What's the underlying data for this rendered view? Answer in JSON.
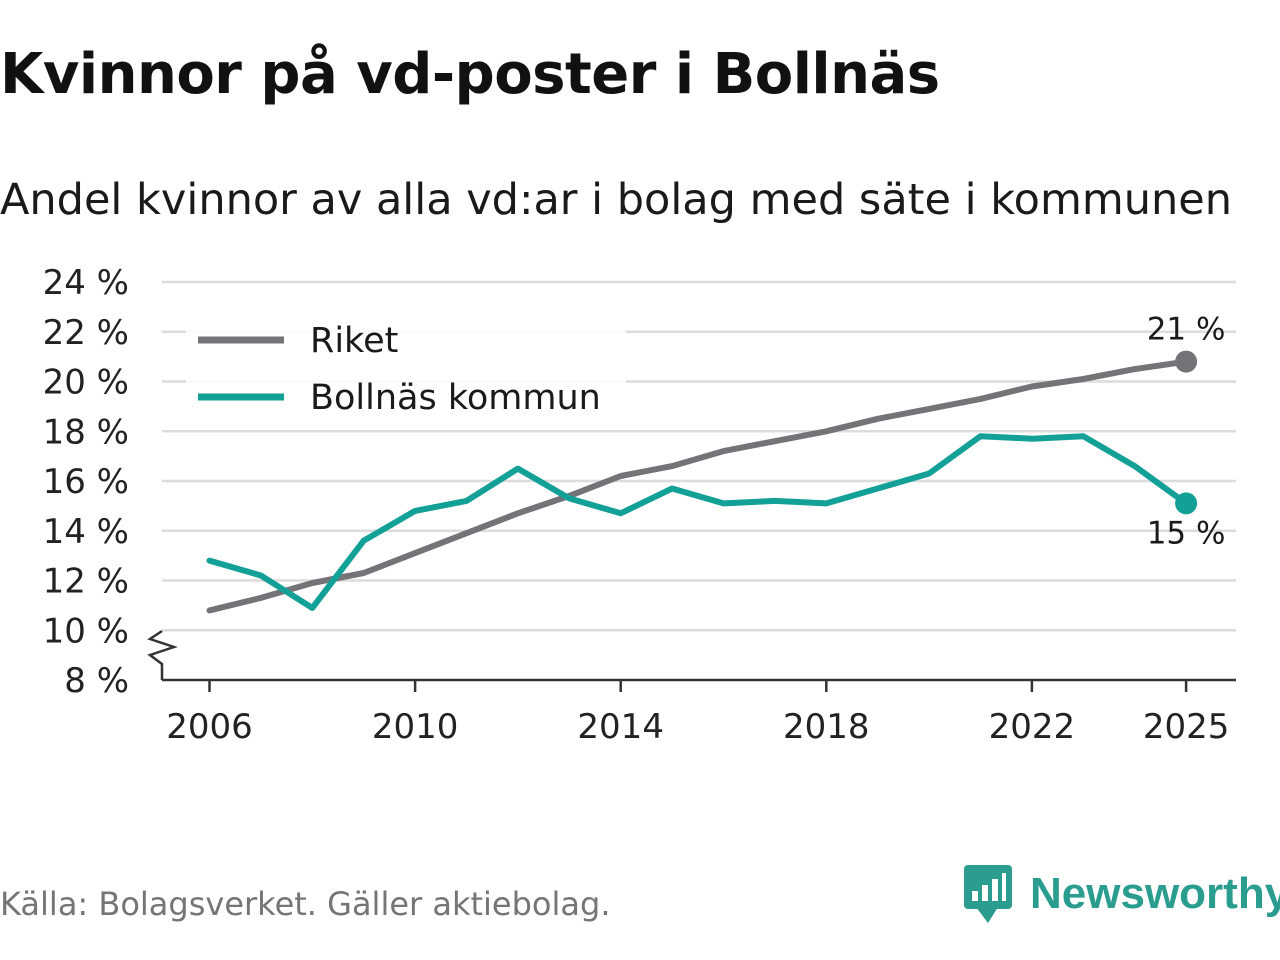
{
  "title": "Kvinnor på vd-poster i Bollnäs",
  "subtitle": "Andel kvinnor av alla vd:ar i bolag med säte i kommunen",
  "source": "Källa: Bolagsverket. Gäller aktiebolag.",
  "brand": {
    "name": "Newsworthy",
    "icon": "newsworthy-logo-icon",
    "color": "#2a9d8f"
  },
  "chart_data": {
    "type": "line",
    "title": "Kvinnor på vd-poster i Bollnäs",
    "subtitle": "Andel kvinnor av alla vd:ar i bolag med säte i kommunen",
    "xlabel": "",
    "ylabel": "",
    "x": [
      2006,
      2007,
      2008,
      2009,
      2010,
      2011,
      2012,
      2013,
      2014,
      2015,
      2016,
      2017,
      2018,
      2019,
      2020,
      2021,
      2022,
      2023,
      2024,
      2025
    ],
    "series": [
      {
        "name": "Riket",
        "color": "#747378",
        "values": [
          10.8,
          11.3,
          11.9,
          12.3,
          13.1,
          13.9,
          14.7,
          15.4,
          16.2,
          16.6,
          17.2,
          17.6,
          18.0,
          18.5,
          18.9,
          19.3,
          19.8,
          20.1,
          20.5,
          20.8
        ],
        "end_label": "21 %"
      },
      {
        "name": "Bollnäs kommun",
        "color": "#13a096",
        "values": [
          12.8,
          12.2,
          10.9,
          13.6,
          14.8,
          15.2,
          16.5,
          15.3,
          14.7,
          15.7,
          15.1,
          15.2,
          15.1,
          15.7,
          16.3,
          17.8,
          17.7,
          17.8,
          16.6,
          15.1
        ],
        "end_label": "15 %"
      }
    ],
    "ylim": [
      8,
      24
    ],
    "y_ticks": [
      8,
      10,
      12,
      14,
      16,
      18,
      20,
      22,
      24
    ],
    "y_tick_labels": [
      "8 %",
      "10 %",
      "12 %",
      "14 %",
      "16 %",
      "18 %",
      "20 %",
      "22 %",
      "24 %"
    ],
    "x_ticks": [
      2006,
      2010,
      2014,
      2018,
      2022,
      2025
    ],
    "x_tick_labels": [
      "2006",
      "2010",
      "2014",
      "2018",
      "2022",
      "2025"
    ],
    "grid": true,
    "axis_break": true,
    "legend": {
      "position": "top-left",
      "entries": [
        "Riket",
        "Bollnäs kommun"
      ]
    }
  }
}
